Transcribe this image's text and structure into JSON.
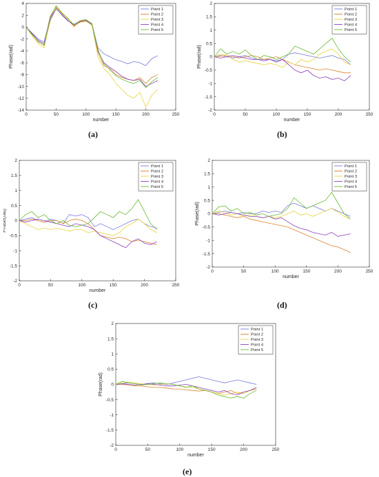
{
  "figure": {
    "colors": [
      "#7777dd",
      "#d9822b",
      "#e8d23a",
      "#8b3fb8",
      "#67b832"
    ]
  },
  "chart_data": [
    {
      "id": "a",
      "panel_label": "(a)",
      "type": "line",
      "xlabel": "number",
      "ylabel": "Phase(rad)",
      "xlim": [
        0,
        250
      ],
      "ylim": [
        -14,
        4
      ],
      "xticks": [
        0,
        50,
        100,
        150,
        200,
        250
      ],
      "yticks": [
        -14,
        -12,
        -10,
        -8,
        -6,
        -4,
        -2,
        0,
        2,
        4
      ],
      "legend": "top-right",
      "x": [
        0,
        10,
        20,
        30,
        40,
        50,
        60,
        70,
        80,
        90,
        100,
        110,
        120,
        130,
        140,
        150,
        160,
        170,
        180,
        190,
        200,
        210,
        220
      ],
      "series": [
        {
          "name": "Point 1",
          "values": [
            0,
            -1,
            -2,
            -2.5,
            1.5,
            3.2,
            2,
            1,
            0.5,
            1,
            1,
            0.5,
            -3.5,
            -4.5,
            -5,
            -5.5,
            -5.8,
            -6.2,
            -5.8,
            -6,
            -6.5,
            -5.3,
            -4.8
          ]
        },
        {
          "name": "Point 2",
          "values": [
            0,
            -1.2,
            -2.5,
            -3,
            1.8,
            3.5,
            2.3,
            1.5,
            0.2,
            1,
            1.2,
            0.4,
            -4.3,
            -6.5,
            -7,
            -8,
            -8.5,
            -8.8,
            -9,
            -8.5,
            -9.5,
            -8.5,
            -8
          ]
        },
        {
          "name": "Point 3",
          "values": [
            0,
            -1.5,
            -2.8,
            -3.5,
            1,
            3.3,
            2.2,
            1.2,
            0,
            0.8,
            1,
            0.3,
            -5,
            -7,
            -8,
            -9.5,
            -10.5,
            -11.5,
            -12,
            -11,
            -13.5,
            -11.5,
            -10.5
          ]
        },
        {
          "name": "Point 4",
          "values": [
            0,
            -1.1,
            -2.2,
            -2.8,
            1.2,
            3.1,
            2.1,
            1.1,
            0.3,
            0.9,
            1.1,
            0.5,
            -4,
            -6,
            -6.8,
            -7.5,
            -8.3,
            -8.8,
            -9,
            -8.8,
            -10,
            -9.5,
            -9
          ]
        },
        {
          "name": "Point 5",
          "values": [
            0,
            -1.3,
            -2.4,
            -3.1,
            1.6,
            3.6,
            2.4,
            1.4,
            0.4,
            1.1,
            1.3,
            0.6,
            -3.8,
            -6.2,
            -7.2,
            -8.2,
            -8.8,
            -9.2,
            -9.5,
            -9,
            -10.2,
            -9.2,
            -8.5
          ]
        }
      ]
    },
    {
      "id": "b",
      "panel_label": "(b)",
      "type": "line",
      "xlabel": "number",
      "ylabel": "Phase(rad)",
      "xlim": [
        0,
        250
      ],
      "ylim": [
        -2,
        2
      ],
      "xticks": [
        0,
        50,
        100,
        150,
        200,
        250
      ],
      "yticks": [
        -2,
        -1.5,
        -1,
        -0.5,
        0,
        0.5,
        1,
        1.5,
        2
      ],
      "legend": "top-right",
      "x": [
        0,
        10,
        20,
        30,
        40,
        50,
        60,
        70,
        80,
        90,
        100,
        110,
        120,
        130,
        140,
        150,
        160,
        170,
        180,
        190,
        200,
        210,
        220
      ],
      "series": [
        {
          "name": "Point 1",
          "values": [
            0,
            0.05,
            0,
            -0.05,
            0,
            0.05,
            -0.05,
            -0.1,
            -0.1,
            -0.1,
            -0.15,
            -0.1,
            0.1,
            0.15,
            0.1,
            0.05,
            0,
            -0.05,
            0,
            0.05,
            -0.05,
            -0.1,
            -0.3
          ]
        },
        {
          "name": "Point 2",
          "values": [
            0,
            0.02,
            0.05,
            0,
            -0.05,
            0,
            0.05,
            0,
            -0.1,
            -0.05,
            0,
            -0.1,
            -0.2,
            -0.3,
            -0.35,
            -0.4,
            -0.45,
            -0.5,
            -0.45,
            -0.5,
            -0.55,
            -0.6,
            -0.6
          ]
        },
        {
          "name": "Point 3",
          "values": [
            0,
            0.1,
            0.05,
            -0.1,
            -0.2,
            -0.15,
            -0.2,
            -0.25,
            -0.3,
            -0.25,
            -0.3,
            -0.4,
            -0.2,
            -0.3,
            -0.1,
            -0.2,
            -0.1,
            0.1,
            0.2,
            0.3,
            0.1,
            -0.2,
            -0.3
          ]
        },
        {
          "name": "Point 4",
          "values": [
            0,
            -0.05,
            0,
            0.05,
            0,
            -0.05,
            -0.1,
            -0.1,
            -0.15,
            -0.1,
            -0.2,
            -0.1,
            -0.3,
            -0.5,
            -0.6,
            -0.5,
            -0.7,
            -0.8,
            -0.75,
            -0.85,
            -0.8,
            -0.9,
            -0.7
          ]
        },
        {
          "name": "Point 5",
          "values": [
            0,
            0.3,
            0.1,
            0.2,
            0.1,
            0.25,
            0.05,
            -0.1,
            0.05,
            0,
            -0.1,
            0,
            0.1,
            0.4,
            0.3,
            0.2,
            0.1,
            0.3,
            0.5,
            0.7,
            0.3,
            0,
            -0.2
          ]
        }
      ]
    },
    {
      "id": "c",
      "panel_label": "(c)",
      "type": "line",
      "xlabel": "number",
      "ylabel": "Phase(rad)",
      "xlim": [
        0,
        250
      ],
      "ylim": [
        -2,
        2
      ],
      "xticks": [
        0,
        50,
        100,
        150,
        200,
        250
      ],
      "yticks": [
        -2,
        -1.5,
        -1,
        -0.5,
        0,
        0.5,
        1,
        1.5,
        2
      ],
      "legend": "top-right",
      "x": [
        0,
        10,
        20,
        30,
        40,
        50,
        60,
        70,
        80,
        90,
        100,
        110,
        120,
        130,
        140,
        150,
        160,
        170,
        180,
        190,
        200,
        210,
        220
      ],
      "series": [
        {
          "name": "Point 1",
          "values": [
            0,
            0.05,
            0.1,
            0,
            -0.05,
            0.05,
            0,
            -0.1,
            0.2,
            0.15,
            0.2,
            0.1,
            -0.2,
            -0.1,
            -0.2,
            -0.3,
            -0.2,
            -0.1,
            0,
            0.05,
            -0.1,
            -0.2,
            -0.25
          ]
        },
        {
          "name": "Point 2",
          "values": [
            0,
            0,
            0.05,
            0,
            -0.05,
            0,
            0,
            -0.1,
            0,
            0.05,
            0,
            -0.1,
            -0.3,
            -0.5,
            -0.55,
            -0.6,
            -0.55,
            -0.6,
            -0.7,
            -0.65,
            -0.7,
            -0.75,
            -0.8
          ]
        },
        {
          "name": "Point 3",
          "values": [
            0,
            -0.1,
            -0.2,
            -0.3,
            -0.25,
            -0.3,
            -0.25,
            -0.3,
            -0.35,
            -0.3,
            -0.3,
            -0.4,
            -0.35,
            -0.4,
            -0.45,
            -0.5,
            -0.4,
            -0.2,
            -0.1,
            0.05,
            -0.1,
            -0.3,
            -0.4
          ]
        },
        {
          "name": "Point 4",
          "values": [
            0,
            -0.05,
            0,
            0.05,
            0,
            -0.05,
            -0.1,
            -0.15,
            -0.2,
            -0.1,
            -0.15,
            -0.2,
            -0.3,
            -0.5,
            -0.6,
            -0.7,
            -0.8,
            -0.9,
            -0.7,
            -0.6,
            -0.75,
            -0.8,
            -0.7
          ]
        },
        {
          "name": "Point 5",
          "values": [
            0,
            0.2,
            0.3,
            0.1,
            0.2,
            0,
            -0.1,
            0,
            -0.15,
            -0.2,
            -0.15,
            -0.1,
            0.1,
            0.3,
            0.2,
            0.1,
            0.3,
            0.2,
            0.4,
            0.7,
            0.3,
            -0.1,
            -0.3
          ]
        }
      ]
    },
    {
      "id": "d",
      "panel_label": "(d)",
      "type": "line",
      "xlabel": "number",
      "ylabel": "Phase(rad)",
      "xlim": [
        0,
        250
      ],
      "ylim": [
        -2,
        2
      ],
      "xticks": [
        0,
        50,
        100,
        150,
        200,
        250
      ],
      "yticks": [
        -2,
        -1.5,
        -1,
        -0.5,
        0,
        0.5,
        1,
        1.5,
        2
      ],
      "legend": "top-right",
      "x": [
        0,
        10,
        20,
        30,
        40,
        50,
        60,
        70,
        80,
        90,
        100,
        110,
        120,
        130,
        140,
        150,
        160,
        170,
        180,
        190,
        200,
        210,
        220
      ],
      "series": [
        {
          "name": "Point 1",
          "values": [
            0,
            0.05,
            0.1,
            0.05,
            0,
            0.05,
            0,
            0,
            0.1,
            0.05,
            0.1,
            0.05,
            0.3,
            0.4,
            0.3,
            0.2,
            0.3,
            0.2,
            0.1,
            0.2,
            0.1,
            0,
            -0.1
          ]
        },
        {
          "name": "Point 2",
          "values": [
            0,
            0,
            -0.05,
            -0.1,
            -0.15,
            -0.1,
            -0.2,
            -0.25,
            -0.3,
            -0.35,
            -0.4,
            -0.45,
            -0.5,
            -0.6,
            -0.7,
            -0.8,
            -0.9,
            -1,
            -1.1,
            -1.2,
            -1.25,
            -1.35,
            -1.45
          ]
        },
        {
          "name": "Point 3",
          "values": [
            0,
            0.1,
            0.05,
            -0.05,
            0,
            -0.1,
            -0.05,
            -0.1,
            -0.15,
            -0.1,
            -0.15,
            -0.1,
            0,
            0.1,
            -0.05,
            0,
            -0.1,
            0,
            0.1,
            0.2,
            0.05,
            -0.1,
            -0.2
          ]
        },
        {
          "name": "Point 4",
          "values": [
            0,
            -0.05,
            0,
            0.05,
            0,
            -0.05,
            -0.1,
            -0.1,
            -0.15,
            -0.1,
            -0.2,
            -0.15,
            -0.3,
            -0.45,
            -0.55,
            -0.6,
            -0.7,
            -0.75,
            -0.8,
            -0.7,
            -0.85,
            -0.8,
            -0.75
          ]
        },
        {
          "name": "Point 5",
          "values": [
            0,
            0.25,
            0.3,
            0.1,
            0.2,
            0,
            0.05,
            -0.05,
            0,
            -0.1,
            -0.05,
            0,
            0.2,
            0.6,
            0.4,
            0.2,
            0.3,
            0.4,
            0.5,
            0.8,
            0.4,
            0,
            -0.2
          ]
        }
      ]
    },
    {
      "id": "e",
      "panel_label": "(e)",
      "type": "line",
      "xlabel": "number",
      "ylabel": "Phase(rad)",
      "xlim": [
        0,
        250
      ],
      "ylim": [
        -2,
        2
      ],
      "xticks": [
        0,
        50,
        100,
        150,
        200,
        250
      ],
      "yticks": [
        -2,
        -1.5,
        -1,
        -0.5,
        0,
        0.5,
        1,
        1.5,
        2
      ],
      "legend": "top-right",
      "x": [
        0,
        10,
        20,
        30,
        40,
        50,
        60,
        70,
        80,
        90,
        100,
        110,
        120,
        130,
        140,
        150,
        160,
        170,
        180,
        190,
        200,
        210,
        220
      ],
      "series": [
        {
          "name": "Point 1",
          "values": [
            0,
            0.02,
            0.05,
            0.02,
            0,
            0.03,
            0.05,
            0.02,
            0,
            0.05,
            0.1,
            0.15,
            0.2,
            0.25,
            0.2,
            0.15,
            0.1,
            0.05,
            0.1,
            0.15,
            0.1,
            0.05,
            0
          ]
        },
        {
          "name": "Point 2",
          "values": [
            0,
            0,
            -0.02,
            -0.05,
            -0.05,
            -0.08,
            -0.1,
            -0.1,
            -0.12,
            -0.15,
            -0.15,
            -0.18,
            -0.2,
            -0.22,
            -0.2,
            -0.25,
            -0.3,
            -0.25,
            -0.2,
            -0.3,
            -0.25,
            -0.2,
            -0.15
          ]
        },
        {
          "name": "Point 3",
          "values": [
            0,
            0.05,
            0.08,
            0.05,
            0.02,
            0,
            -0.02,
            0,
            0.02,
            0,
            -0.05,
            -0.08,
            -0.1,
            -0.15,
            -0.2,
            -0.25,
            -0.3,
            -0.35,
            -0.3,
            -0.25,
            -0.3,
            -0.2,
            -0.1
          ]
        },
        {
          "name": "Point 4",
          "values": [
            0,
            0.02,
            0,
            -0.02,
            0,
            0.02,
            0,
            -0.02,
            -0.05,
            -0.05,
            -0.02,
            0,
            -0.05,
            -0.1,
            -0.15,
            -0.2,
            -0.25,
            -0.2,
            -0.3,
            -0.35,
            -0.25,
            -0.2,
            -0.1
          ]
        },
        {
          "name": "Point 5",
          "values": [
            0,
            0.1,
            0.05,
            0.02,
            -0.02,
            0,
            0.03,
            0.05,
            0.02,
            0,
            -0.05,
            -0.1,
            -0.05,
            -0.15,
            -0.2,
            -0.25,
            -0.35,
            -0.4,
            -0.45,
            -0.4,
            -0.45,
            -0.3,
            -0.2
          ]
        }
      ]
    }
  ]
}
